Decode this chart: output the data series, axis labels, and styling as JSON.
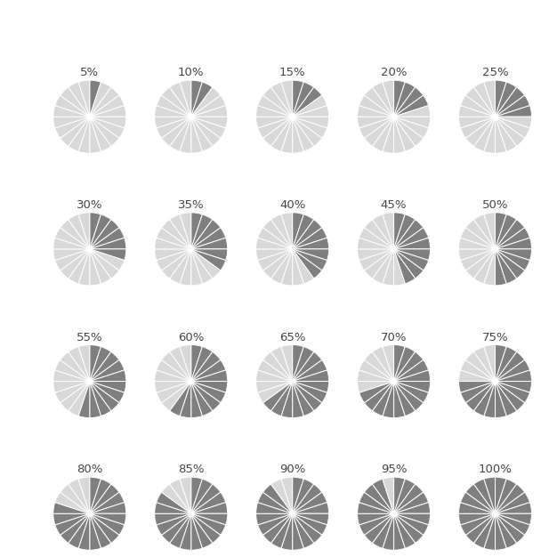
{
  "percentages": [
    5,
    10,
    15,
    20,
    25,
    30,
    35,
    40,
    45,
    50,
    55,
    60,
    65,
    70,
    75,
    80,
    85,
    90,
    95,
    100
  ],
  "n_segments": 20,
  "dark_color": "#7f7f7f",
  "light_color": "#d8d8d8",
  "line_color": "#ffffff",
  "background_color": "#ffffff",
  "text_color": "#444444",
  "font_size": 9.5,
  "grid_rows": 4,
  "grid_cols": 5
}
